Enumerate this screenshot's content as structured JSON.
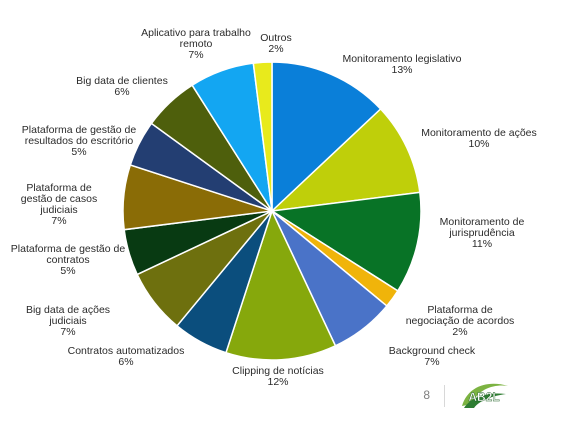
{
  "chart_data": {
    "type": "pie",
    "title": "",
    "slices": [
      {
        "label": "Monitoramento legislativo",
        "value_label": "13%",
        "value": 13,
        "color": "#0a7fd9"
      },
      {
        "label": "Monitoramento de ações",
        "value_label": "10%",
        "value": 10,
        "color": "#bfcf0a"
      },
      {
        "label": "Monitoramento de jurisprudência",
        "value_label": "11%",
        "value": 11,
        "color": "#087326"
      },
      {
        "label": "Plataforma de negociação de acordos",
        "value_label": "2%",
        "value": 2,
        "color": "#f0b40a"
      },
      {
        "label": "Background check",
        "value_label": "7%",
        "value": 7,
        "color": "#4a73c8"
      },
      {
        "label": "Clipping de notícias",
        "value_label": "12%",
        "value": 12,
        "color": "#86a80c"
      },
      {
        "label": "Contratos automatizados",
        "value_label": "6%",
        "value": 6,
        "color": "#0b4e7d"
      },
      {
        "label": "Big data de ações judiciais",
        "value_label": "7%",
        "value": 7,
        "color": "#6e700e"
      },
      {
        "label": "Plataforma de gestão de contratos",
        "value_label": "5%",
        "value": 5,
        "color": "#083a12"
      },
      {
        "label": "Plataforma de gestão de casos judiciais",
        "value_label": "7%",
        "value": 7,
        "color": "#8a6c06"
      },
      {
        "label": "Plataforma de gestão de resultados do escritório",
        "value_label": "5%",
        "value": 5,
        "color": "#233e72"
      },
      {
        "label": "Big data de clientes",
        "value_label": "6%",
        "value": 6,
        "color": "#4e5f0c"
      },
      {
        "label": "Aplicativo para trabalho remoto",
        "value_label": "7%",
        "value": 7,
        "color": "#13a6f2"
      },
      {
        "label": "Outros",
        "value_label": "2%",
        "value": 2,
        "color": "#e8ea1c"
      }
    ],
    "legend": "none",
    "data_labels": "outside"
  },
  "footer": {
    "page_number": "8",
    "logo_text": "AB2L"
  }
}
